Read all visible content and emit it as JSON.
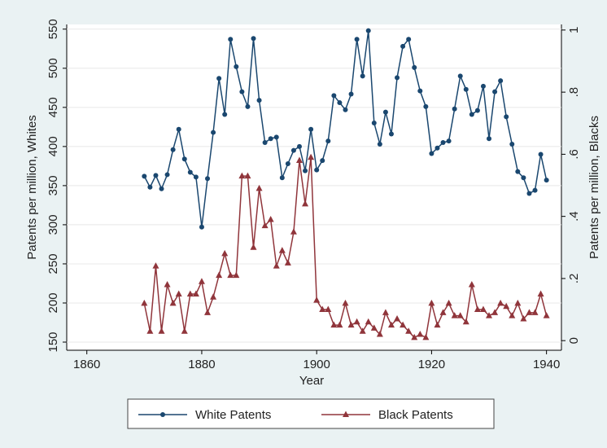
{
  "chart_data": {
    "type": "line",
    "xlabel": "Year",
    "ylabel": "Patents per million, Whites",
    "y2label": "Patents per million, Blacks",
    "x": [
      1870,
      1871,
      1872,
      1873,
      1874,
      1875,
      1876,
      1877,
      1878,
      1879,
      1880,
      1881,
      1882,
      1883,
      1884,
      1885,
      1886,
      1887,
      1888,
      1889,
      1890,
      1891,
      1892,
      1893,
      1894,
      1895,
      1896,
      1897,
      1898,
      1899,
      1900,
      1901,
      1902,
      1903,
      1904,
      1905,
      1906,
      1907,
      1908,
      1909,
      1910,
      1911,
      1912,
      1913,
      1914,
      1915,
      1916,
      1917,
      1918,
      1919,
      1920,
      1921,
      1922,
      1923,
      1924,
      1925,
      1926,
      1927,
      1928,
      1929,
      1930,
      1931,
      1932,
      1933,
      1934,
      1935,
      1936,
      1937,
      1938,
      1939,
      1940
    ],
    "series": [
      {
        "name": "White Patents",
        "color": "#1a476f",
        "marker": "circle",
        "axis": "y",
        "values": [
          362,
          348,
          363,
          346,
          364,
          396,
          422,
          384,
          367,
          361,
          297,
          359,
          418,
          487,
          441,
          537,
          502,
          470,
          451,
          538,
          459,
          405,
          410,
          412,
          360,
          378,
          395,
          400,
          369,
          422,
          370,
          382,
          407,
          465,
          456,
          447,
          467,
          537,
          490,
          548,
          430,
          403,
          444,
          416,
          488,
          528,
          537,
          501,
          471,
          451,
          391,
          398,
          405,
          407,
          448,
          490,
          473,
          441,
          446,
          477,
          410,
          470,
          484,
          438,
          403,
          368,
          360,
          340,
          344,
          390,
          357
        ]
      },
      {
        "name": "Black Patents",
        "color": "#90353b",
        "marker": "triangle",
        "axis": "y2",
        "values": [
          0.12,
          0.03,
          0.24,
          0.03,
          0.18,
          0.12,
          0.15,
          0.03,
          0.15,
          0.15,
          0.19,
          0.09,
          0.14,
          0.21,
          0.28,
          0.21,
          0.21,
          0.53,
          0.53,
          0.3,
          0.49,
          0.37,
          0.39,
          0.24,
          0.29,
          0.25,
          0.35,
          0.58,
          0.44,
          0.59,
          0.13,
          0.1,
          0.1,
          0.05,
          0.05,
          0.12,
          0.05,
          0.06,
          0.03,
          0.06,
          0.04,
          0.02,
          0.09,
          0.05,
          0.07,
          0.05,
          0.03,
          0.01,
          0.02,
          0.01,
          0.12,
          0.05,
          0.09,
          0.12,
          0.08,
          0.08,
          0.06,
          0.18,
          0.1,
          0.1,
          0.08,
          0.09,
          0.12,
          0.11,
          0.08,
          0.12,
          0.07,
          0.09,
          0.09,
          0.15,
          0.08
        ]
      }
    ],
    "xlim": [
      1856.5,
      1942.6
    ],
    "xticks": [
      1860,
      1880,
      1900,
      1920,
      1940
    ],
    "ylim": [
      139.6,
      556
    ],
    "yticks": [
      150,
      200,
      250,
      300,
      350,
      400,
      450,
      500,
      550
    ],
    "y2lim": [
      -0.031,
      1.018
    ],
    "y2ticks": [
      0,
      {
        "value": 0.2,
        "label": ".2"
      },
      {
        "value": 0.4,
        "label": ".4"
      },
      {
        "value": 0.6,
        "label": ".6"
      },
      {
        "value": 0.8,
        "label": ".8"
      },
      1
    ],
    "grid": true,
    "legend": "bottom"
  }
}
